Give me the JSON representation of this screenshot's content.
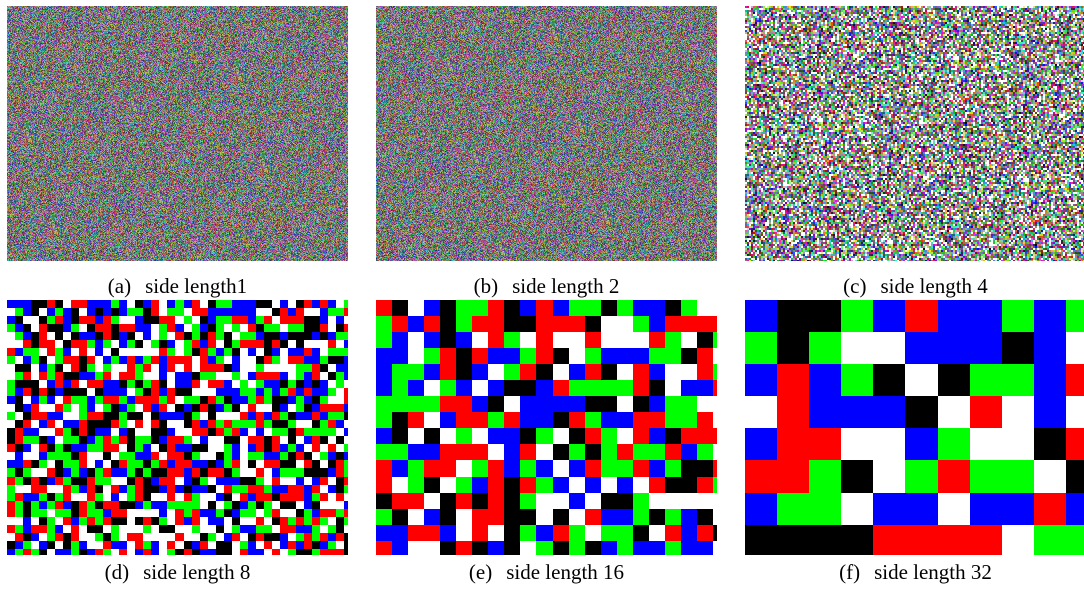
{
  "figure": {
    "panels": [
      {
        "tag": "(a)",
        "label": "side length1",
        "block_size": 1,
        "palette": "muted-noise"
      },
      {
        "tag": "(b)",
        "label": "side length 2",
        "block_size": 2,
        "palette": "muted-noise"
      },
      {
        "tag": "(c)",
        "label": "side length 4",
        "block_size": 4,
        "palette": "bright-noise"
      },
      {
        "tag": "(d)",
        "label": "side length 8",
        "block_size": 8,
        "palette": "rgbkw"
      },
      {
        "tag": "(e)",
        "label": "side length 16",
        "block_size": 16,
        "palette": "rgbkw"
      },
      {
        "tag": "(f)",
        "label": "side length 32",
        "block_size": 32,
        "palette": "rgbkw"
      }
    ],
    "colors": {
      "red": "#ff0000",
      "green": "#00ff00",
      "blue": "#0000ff",
      "black": "#000000",
      "white": "#ffffff"
    }
  }
}
